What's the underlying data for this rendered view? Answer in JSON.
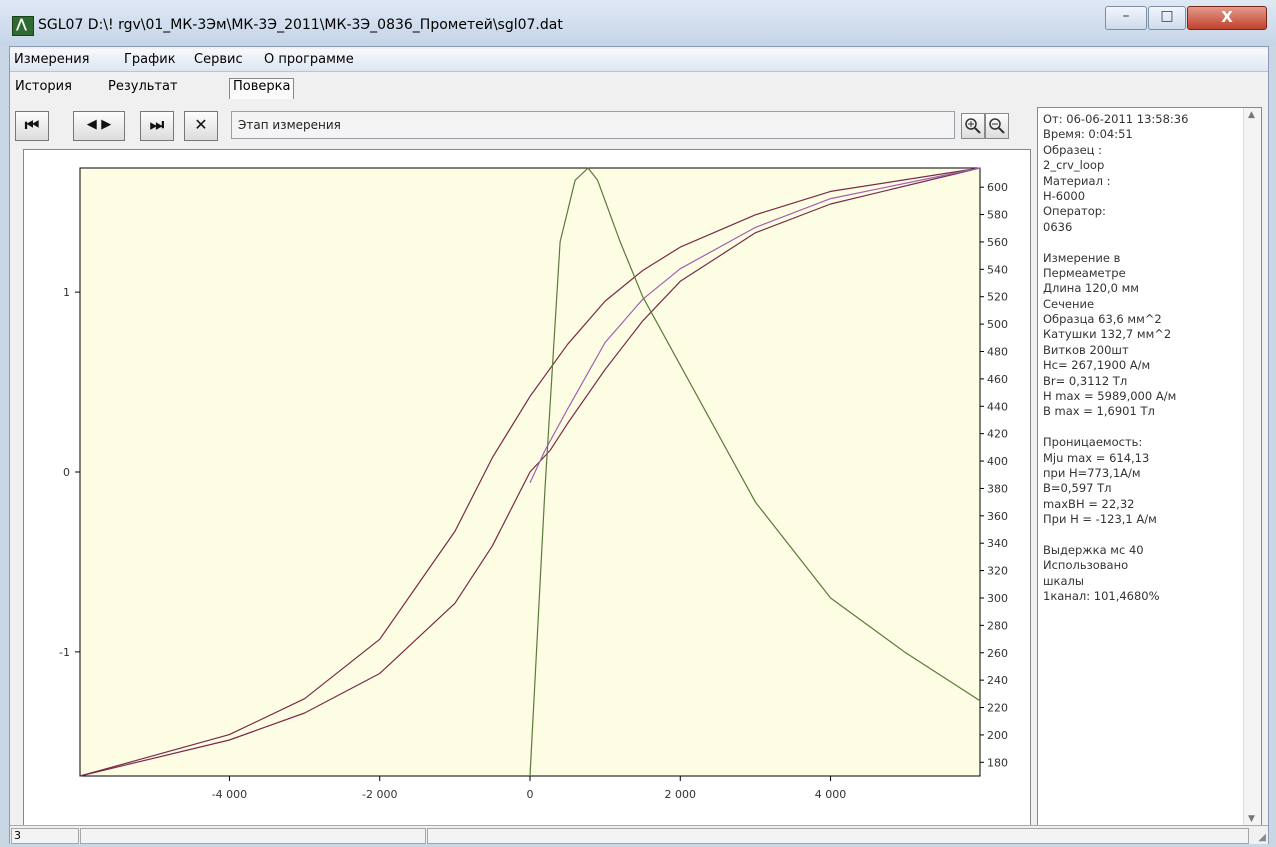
{
  "window": {
    "title": "SGL07 D:\\! rgv\\01_МК-3Эм\\МК-3Э_2011\\МК-3Э_0836_Прометей\\sgl07.dat",
    "app_icon": "magnet-app-icon",
    "buttons": {
      "minimize": "–",
      "maximize": "□",
      "close": "X"
    }
  },
  "menu": [
    "Измерения",
    "График",
    "Сервис",
    "О программе"
  ],
  "tabs": [
    "История",
    "Результат",
    "Поверка"
  ],
  "active_tab": "Результат",
  "toolbar": {
    "first": "⏮",
    "prev_next": "◀ ▶",
    "last": "⏭",
    "close": "✕",
    "stage_label": "Этап измерения",
    "zoom_in": "zoom-in-icon",
    "zoom_out": "zoom-out-icon"
  },
  "info": {
    "lines": [
      "От: 06-06-2011 13:58:36",
      "Время: 0:04:51",
      "Образец :",
      "  2_crv_loop",
      "Материал :",
      "  H-6000",
      "Оператор:",
      "  0636",
      "",
      "Измерение в",
      "Пермеаметре",
      "Длина 120,0 мм",
      "Сечение",
      "  Образца  63,6 мм^2",
      "  Катушки  132,7 мм^2",
      "  Витков  200шт",
      "Hc= 267,1900 A/м",
      "Br= 0,3112 Тл",
      "H max = 5989,000 A/м",
      "B max = 1,6901 Тл",
      "",
      "Проницаемость:",
      "Mju max = 614,13",
      "при H=773,1A/м",
      "B=0,597 Тл",
      "maxBH = 22,32",
      "При H = -123,1 A/м",
      "",
      "Выдержка мс 40",
      "Использовано",
      "шкалы",
      "1канал: 101,4680%"
    ]
  },
  "status": {
    "cell1": "3",
    "cell2": "",
    "cell3": ""
  },
  "colors": {
    "plot_bg": "#fdfde4",
    "loop": "#7a2a4a",
    "loop_fit": "#a060b0",
    "mu": "#5a7a3a",
    "axis": "#000000"
  },
  "chart_data": {
    "type": "line",
    "xlim": [
      -5989,
      5989
    ],
    "ylim_left": [
      -1.69,
      1.69
    ],
    "ylim_right": [
      170,
      614
    ],
    "x_ticks": [
      -4000,
      -2000,
      0,
      2000,
      4000
    ],
    "x_tick_labels": [
      "-4 000",
      "-2 000",
      "0",
      "2 000",
      "4 000"
    ],
    "y_left_ticks": [
      -1,
      0,
      1
    ],
    "y_left_tick_labels": [
      "-1",
      "0",
      "1"
    ],
    "y_right_ticks": [
      180,
      200,
      220,
      240,
      260,
      280,
      300,
      320,
      340,
      360,
      380,
      400,
      420,
      440,
      460,
      480,
      500,
      520,
      540,
      560,
      580,
      600
    ],
    "y_right_tick_labels": [
      "180",
      "200",
      "220",
      "240",
      "260",
      "280",
      "300",
      "320",
      "340",
      "360",
      "380",
      "400",
      "420",
      "440",
      "460",
      "480",
      "500",
      "520",
      "540",
      "560",
      "580",
      "600"
    ],
    "series": [
      {
        "axis": "left",
        "x": [
          -5989,
          -4000,
          -3000,
          -2000,
          -1000,
          -500,
          0,
          267,
          500,
          1000,
          1500,
          2000,
          3000,
          4000,
          5989
        ],
        "y": [
          -1.69,
          -1.49,
          -1.34,
          -1.12,
          -0.73,
          -0.41,
          0,
          0.12,
          0.27,
          0.57,
          0.84,
          1.06,
          1.33,
          1.49,
          1.69
        ]
      },
      {
        "axis": "left",
        "x": [
          -5989,
          -4000,
          -3000,
          -2000,
          -1000,
          -500,
          0,
          500,
          1000,
          1500,
          2000,
          3000,
          4000,
          5989
        ],
        "y": [
          -1.69,
          -1.46,
          -1.26,
          -0.93,
          -0.33,
          0.08,
          0.42,
          0.71,
          0.95,
          1.12,
          1.25,
          1.43,
          1.56,
          1.69
        ]
      },
      {
        "axis": "left",
        "x": [
          0,
          200,
          500,
          1000,
          1500,
          2000,
          3000,
          4000,
          5989
        ],
        "y": [
          -0.06,
          0.12,
          0.35,
          0.72,
          0.96,
          1.13,
          1.36,
          1.52,
          1.69
        ]
      },
      {
        "axis": "right",
        "x": [
          0,
          200,
          400,
          600,
          773,
          900,
          1200,
          1500,
          2000,
          3000,
          4000,
          5000,
          5989
        ],
        "y": [
          170,
          380,
          560,
          605,
          614,
          605,
          560,
          520,
          470,
          370,
          300,
          260,
          225
        ]
      }
    ]
  }
}
